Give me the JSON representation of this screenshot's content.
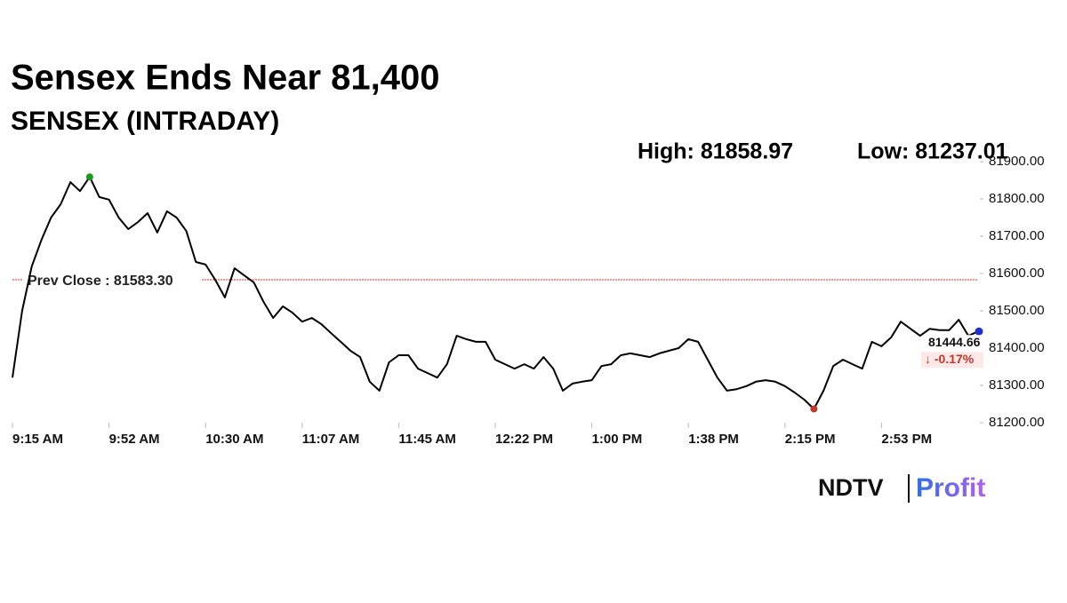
{
  "chart_data": {
    "type": "line",
    "title": "Sensex Ends Near 81,400",
    "subtitle": "SENSEX (INTRADAY)",
    "high": {
      "value": 81858.97,
      "label": "High: 81858.97"
    },
    "low": {
      "value": 81237.01,
      "label": "Low: 81237.01"
    },
    "prev_close": {
      "value": 81583.3,
      "label": "Prev Close : 81583.30"
    },
    "last": {
      "value": 81444.66,
      "label": "81444.66"
    },
    "change": {
      "value": -0.17,
      "label": "↓ -0.17%"
    },
    "categories": [
      "9:15 AM",
      null,
      null,
      null,
      null,
      null,
      null,
      null,
      null,
      null,
      "9:52 AM",
      null,
      null,
      null,
      null,
      null,
      null,
      null,
      null,
      null,
      "10:30 AM",
      null,
      null,
      null,
      null,
      null,
      null,
      null,
      null,
      null,
      "11:07 AM",
      null,
      null,
      null,
      null,
      null,
      null,
      null,
      null,
      null,
      "11:45 AM",
      null,
      null,
      null,
      null,
      null,
      null,
      null,
      null,
      null,
      "12:22 PM",
      null,
      null,
      null,
      null,
      null,
      null,
      null,
      null,
      null,
      "1:00 PM",
      null,
      null,
      null,
      null,
      null,
      null,
      null,
      null,
      null,
      "1:38 PM",
      null,
      null,
      null,
      null,
      null,
      null,
      null,
      null,
      null,
      "2:15 PM",
      null,
      null,
      null,
      null,
      null,
      null,
      null,
      null,
      null,
      "2:53 PM",
      null,
      null,
      null,
      null,
      null,
      null,
      null,
      null,
      null,
      null
    ],
    "series": [
      {
        "name": "SENSEX",
        "color": "#000000",
        "values": [
          81321,
          81500,
          81619,
          81690,
          81750,
          81786,
          81845,
          81821,
          81858.97,
          81805,
          81798,
          81750,
          81719,
          81738,
          81762,
          81710,
          81767,
          81750,
          81714,
          81631,
          81624,
          81583,
          81536,
          81614,
          81595,
          81576,
          81524,
          81481,
          81512,
          81495,
          81471,
          81481,
          81464,
          81440,
          81417,
          81393,
          81376,
          81310,
          81286,
          81362,
          81381,
          81381,
          81345,
          81333,
          81321,
          81357,
          81433,
          81424,
          81417,
          81417,
          81369,
          81357,
          81345,
          81357,
          81345,
          81376,
          81345,
          81286,
          81305,
          81310,
          81314,
          81352,
          81357,
          81381,
          81386,
          81381,
          81376,
          81386,
          81393,
          81400,
          81424,
          81417,
          81369,
          81321,
          81286,
          81290,
          81298,
          81310,
          81314,
          81310,
          81298,
          81281,
          81262,
          81237.01,
          81286,
          81352,
          81369,
          81357,
          81345,
          81417,
          81405,
          81429,
          81471,
          81452,
          81433,
          81452,
          81448,
          81448,
          81476,
          81433,
          81444.66
        ]
      }
    ],
    "ylim": [
      81200,
      81900
    ],
    "yticks": [
      {
        "value": 81200,
        "label": "81200.00"
      },
      {
        "value": 81300,
        "label": "81300.00"
      },
      {
        "value": 81400,
        "label": "81400.00"
      },
      {
        "value": 81500,
        "label": "81500.00"
      },
      {
        "value": 81600,
        "label": "81600.00"
      },
      {
        "value": 81700,
        "label": "81700.00"
      },
      {
        "value": 81800,
        "label": "81800.00"
      },
      {
        "value": 81900,
        "label": "81900.00"
      }
    ],
    "prev_close_color": "#e03030",
    "high_color": "#1a9a1a",
    "low_color": "#c0392b",
    "last_color": "#1f2fd0",
    "brand": {
      "name": "NDTV",
      "product": "Profit"
    }
  }
}
